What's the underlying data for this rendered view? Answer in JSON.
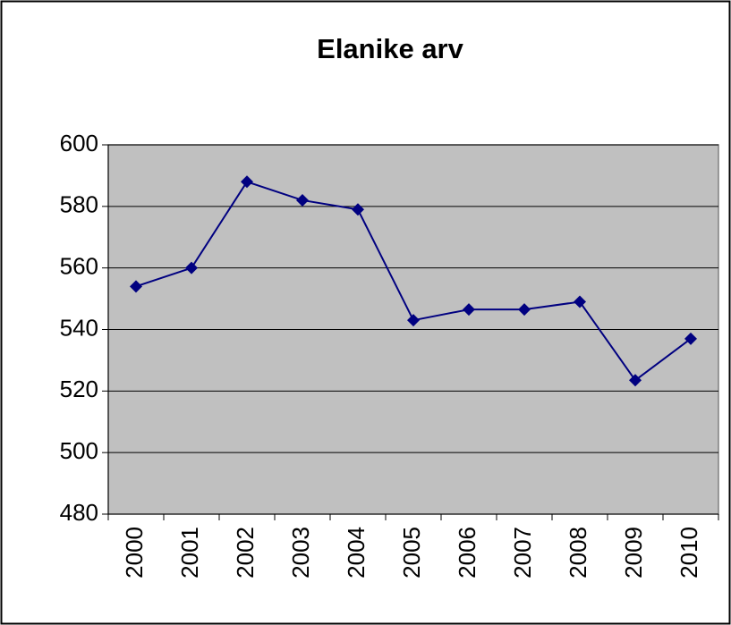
{
  "chart_data": {
    "type": "line",
    "title": "Elanike arv",
    "categories": [
      "2000",
      "2001",
      "2002",
      "2003",
      "2004",
      "2005",
      "2006",
      "2007",
      "2008",
      "2009",
      "2010"
    ],
    "series": [
      {
        "name": "Elanike arv",
        "color": "#000080",
        "values": [
          554,
          560,
          588,
          582,
          579,
          543,
          546.5,
          546.5,
          549,
          523.5,
          537
        ]
      }
    ],
    "ylim": [
      480,
      600
    ],
    "yticks": [
      480,
      500,
      520,
      540,
      560,
      580,
      600
    ],
    "grid": true,
    "plot_background": "#c0c0c0"
  }
}
